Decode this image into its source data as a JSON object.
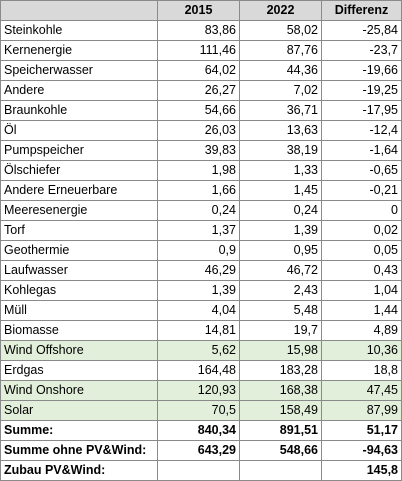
{
  "headers": [
    "",
    "2015",
    "2022",
    "Differenz"
  ],
  "rows": [
    {
      "label": "Steinkohle",
      "v2015": "83,86",
      "v2022": "58,02",
      "diff": "-25,84",
      "highlight": false
    },
    {
      "label": "Kernenergie",
      "v2015": "111,46",
      "v2022": "87,76",
      "diff": "-23,7",
      "highlight": false
    },
    {
      "label": "Speicherwasser",
      "v2015": "64,02",
      "v2022": "44,36",
      "diff": "-19,66",
      "highlight": false
    },
    {
      "label": "Andere",
      "v2015": "26,27",
      "v2022": "7,02",
      "diff": "-19,25",
      "highlight": false
    },
    {
      "label": "Braunkohle",
      "v2015": "54,66",
      "v2022": "36,71",
      "diff": "-17,95",
      "highlight": false
    },
    {
      "label": "Öl",
      "v2015": "26,03",
      "v2022": "13,63",
      "diff": "-12,4",
      "highlight": false
    },
    {
      "label": "Pumpspeicher",
      "v2015": "39,83",
      "v2022": "38,19",
      "diff": "-1,64",
      "highlight": false
    },
    {
      "label": "Ölschiefer",
      "v2015": "1,98",
      "v2022": "1,33",
      "diff": "-0,65",
      "highlight": false
    },
    {
      "label": "Andere Erneuerbare",
      "v2015": "1,66",
      "v2022": "1,45",
      "diff": "-0,21",
      "highlight": false
    },
    {
      "label": "Meeresenergie",
      "v2015": "0,24",
      "v2022": "0,24",
      "diff": "0",
      "highlight": false
    },
    {
      "label": "Torf",
      "v2015": "1,37",
      "v2022": "1,39",
      "diff": "0,02",
      "highlight": false
    },
    {
      "label": "Geothermie",
      "v2015": "0,9",
      "v2022": "0,95",
      "diff": "0,05",
      "highlight": false
    },
    {
      "label": "Laufwasser",
      "v2015": "46,29",
      "v2022": "46,72",
      "diff": "0,43",
      "highlight": false
    },
    {
      "label": "Kohlegas",
      "v2015": "1,39",
      "v2022": "2,43",
      "diff": "1,04",
      "highlight": false
    },
    {
      "label": "Müll",
      "v2015": "4,04",
      "v2022": "5,48",
      "diff": "1,44",
      "highlight": false
    },
    {
      "label": "Biomasse",
      "v2015": "14,81",
      "v2022": "19,7",
      "diff": "4,89",
      "highlight": false
    },
    {
      "label": "Wind Offshore",
      "v2015": "5,62",
      "v2022": "15,98",
      "diff": "10,36",
      "highlight": true
    },
    {
      "label": "Erdgas",
      "v2015": "164,48",
      "v2022": "183,28",
      "diff": "18,8",
      "highlight": false
    },
    {
      "label": "Wind Onshore",
      "v2015": "120,93",
      "v2022": "168,38",
      "diff": "47,45",
      "highlight": true
    },
    {
      "label": "Solar",
      "v2015": "70,5",
      "v2022": "158,49",
      "diff": "87,99",
      "highlight": true
    }
  ],
  "summary": [
    {
      "label": "Summe:",
      "v2015": "840,34",
      "v2022": "891,51",
      "diff": "51,17"
    },
    {
      "label": "Summe ohne PV&Wind:",
      "v2015": "643,29",
      "v2022": "548,66",
      "diff": "-94,63"
    },
    {
      "label": "Zubau PV&Wind:",
      "v2015": "",
      "v2022": "",
      "diff": "145,8"
    }
  ]
}
